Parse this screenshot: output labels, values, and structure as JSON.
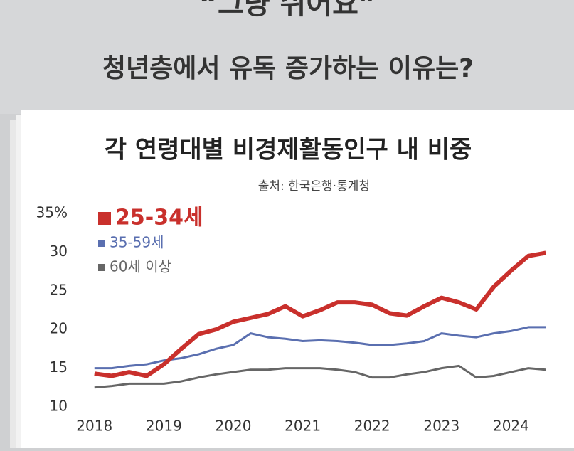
{
  "header": {
    "quote": "“그냥 쉬어요”",
    "question": "청년층에서 유독 증가하는 이유는?"
  },
  "chart_data": {
    "type": "line",
    "title": "각 연령대별 비경제활동인구 내 비중",
    "source": "출처: 한국은행·통계청",
    "x": [
      2018,
      2018.25,
      2018.5,
      2018.75,
      2019,
      2019.25,
      2019.5,
      2019.75,
      2020,
      2020.25,
      2020.5,
      2020.75,
      2021,
      2021.25,
      2021.5,
      2021.75,
      2022,
      2022.25,
      2022.5,
      2022.75,
      2023,
      2023.25,
      2023.5,
      2023.75,
      2024,
      2024.25,
      2024.5
    ],
    "series": [
      {
        "name": "25-34세",
        "color": "#c9302c",
        "values": [
          14.3,
          14.0,
          14.5,
          14.0,
          15.5,
          17.5,
          19.4,
          20.0,
          21.0,
          21.5,
          22.0,
          23.0,
          21.7,
          22.5,
          23.5,
          23.5,
          23.2,
          22.1,
          21.8,
          23.0,
          24.1,
          23.5,
          22.6,
          25.5,
          27.6,
          29.5,
          29.9
        ]
      },
      {
        "name": "35-59세",
        "color": "#5a6fb0",
        "values": [
          15.0,
          15.0,
          15.3,
          15.5,
          16.0,
          16.3,
          16.8,
          17.5,
          18.0,
          19.5,
          19.0,
          18.8,
          18.5,
          18.6,
          18.5,
          18.3,
          18.0,
          18.0,
          18.2,
          18.5,
          19.5,
          19.2,
          19.0,
          19.5,
          19.8,
          20.3,
          20.3
        ]
      },
      {
        "name": "60세 이상",
        "color": "#666666",
        "values": [
          12.5,
          12.7,
          13.0,
          13.0,
          13.0,
          13.3,
          13.8,
          14.2,
          14.5,
          14.8,
          14.8,
          15.0,
          15.0,
          15.0,
          14.8,
          14.5,
          13.8,
          13.8,
          14.2,
          14.5,
          15.0,
          15.3,
          13.8,
          14.0,
          14.5,
          15.0,
          14.8
        ]
      }
    ],
    "xlim": [
      2017.9,
      2024.6
    ],
    "xticks": [
      2018,
      2019,
      2020,
      2021,
      2022,
      2023,
      2024
    ],
    "ylim": [
      10,
      35
    ],
    "yticks": [
      10,
      15,
      20,
      25,
      30,
      {
        "value": 35,
        "label": "35%"
      }
    ],
    "grid": false
  }
}
